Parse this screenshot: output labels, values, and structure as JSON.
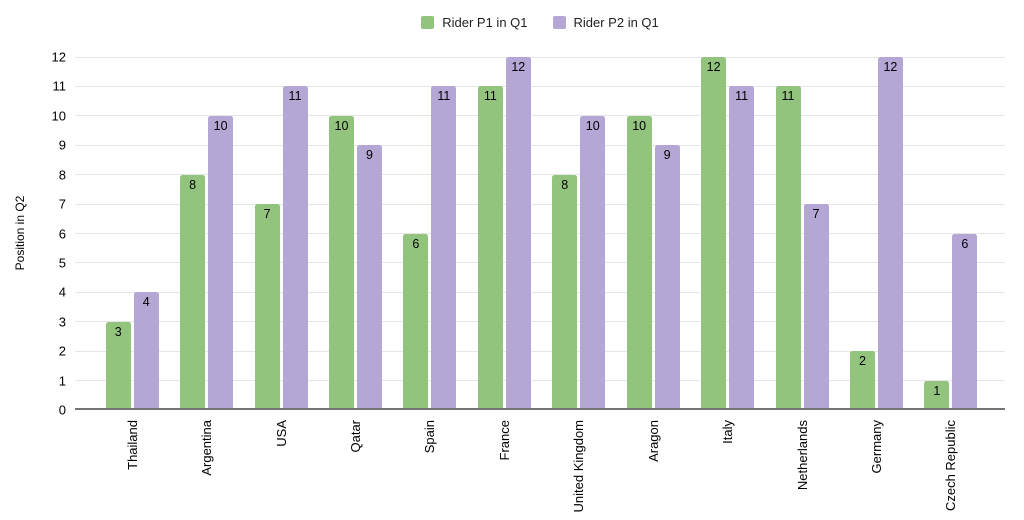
{
  "chart_data": {
    "type": "bar",
    "title": "",
    "xlabel": "",
    "ylabel": "Position in Q2",
    "categories": [
      "Thailand",
      "Argentina",
      "USA",
      "Qatar",
      "Spain",
      "France",
      "United Kingdom",
      "Aragon",
      "Italy",
      "Netherlands",
      "Germany",
      "Czech Republic"
    ],
    "series": [
      {
        "name": "Rider P1 in Q1",
        "color": "#93c47d",
        "values": [
          3,
          8,
          7,
          10,
          6,
          11,
          8,
          10,
          12,
          11,
          2,
          1
        ]
      },
      {
        "name": "Rider P2 in Q1",
        "color": "#b4a7d6",
        "values": [
          4,
          10,
          11,
          9,
          11,
          12,
          10,
          9,
          11,
          7,
          12,
          6
        ]
      }
    ],
    "ylim": [
      0,
      12
    ],
    "ytick_step": 1,
    "grid": true,
    "legend_position": "top",
    "value_labels": "inside-top"
  },
  "style_colors": {
    "background": "#ffffff",
    "gridline": "#e6e6e6",
    "axis_line": "#757575",
    "text": "#000000"
  }
}
